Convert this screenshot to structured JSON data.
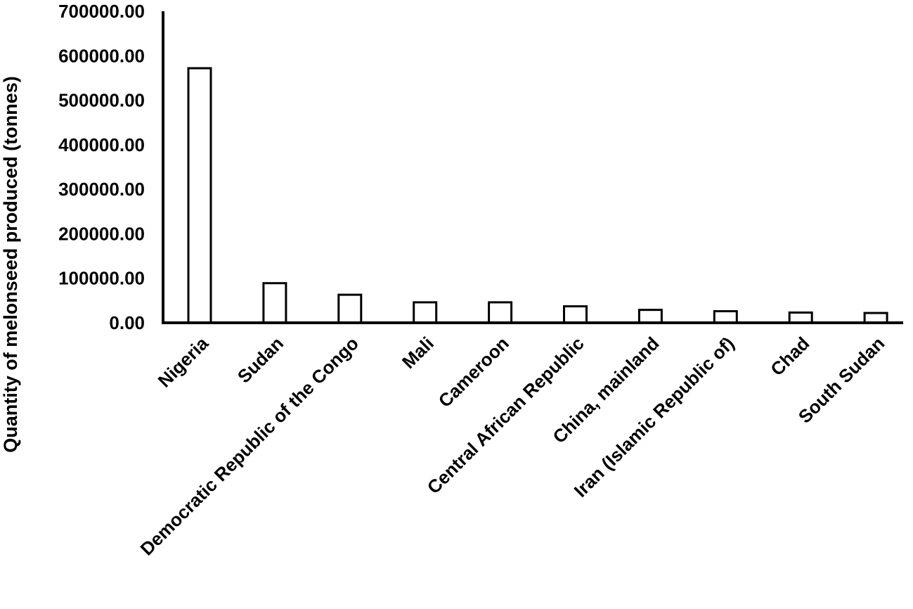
{
  "chart_data": {
    "type": "bar",
    "title": "",
    "xlabel": "",
    "ylabel": "Quantity of melonseed produced (tonnes)",
    "ylim": [
      0,
      700000
    ],
    "yticks": [
      0,
      100000,
      200000,
      300000,
      400000,
      500000,
      600000,
      700000
    ],
    "ytick_labels": [
      "0.00",
      "100000.00",
      "200000.00",
      "300000.00",
      "400000.00",
      "500000.00",
      "600000.00",
      "700000.00"
    ],
    "categories": [
      "Nigeria",
      "Sudan",
      "Democratic Republic of the Congo",
      "Mali",
      "Cameroon",
      "Central African Republic",
      "China, mainland",
      "Iran (Islamic Republic of)",
      "Chad",
      "South Sudan"
    ],
    "values": [
      572000,
      89000,
      63000,
      46000,
      46000,
      37000,
      29000,
      26000,
      23000,
      22000
    ],
    "grid": false,
    "legend": "none",
    "colors": {
      "bar_fill": "#ffffff",
      "bar_stroke": "#000000",
      "axis": "#000000"
    }
  }
}
